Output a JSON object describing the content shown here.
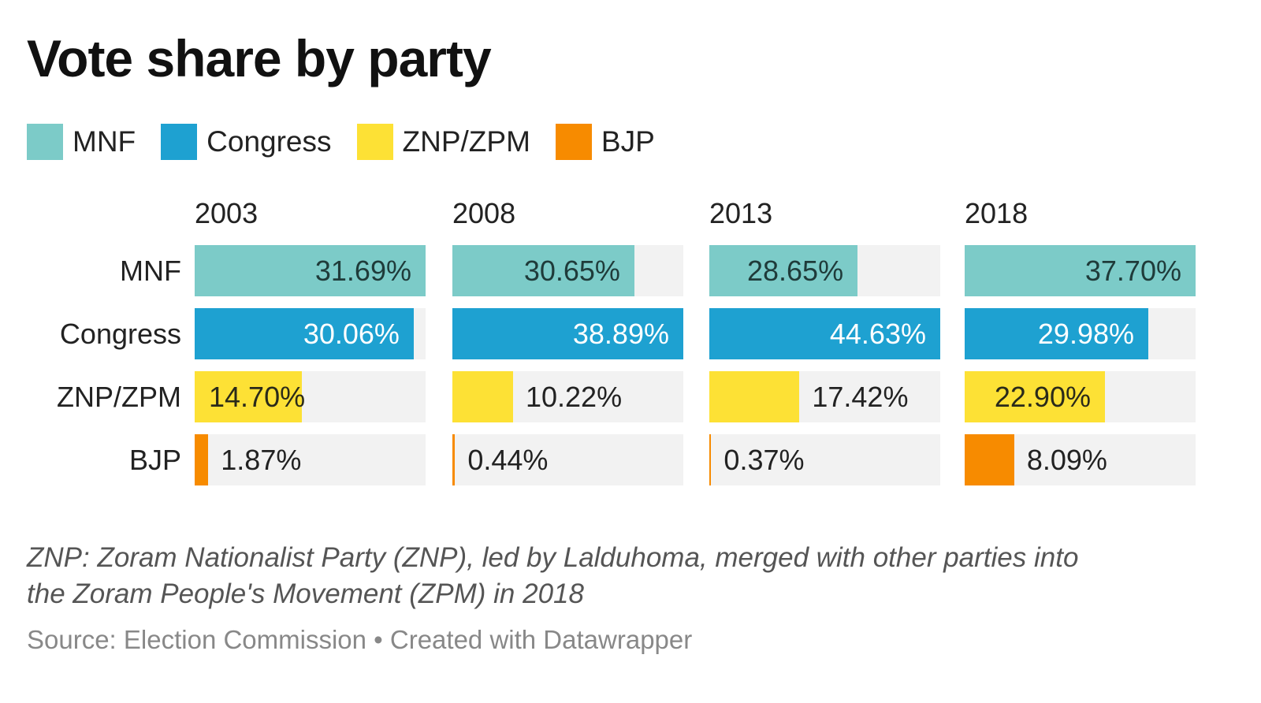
{
  "chart_data": {
    "type": "bar",
    "title": "Vote share by party",
    "legend": [
      {
        "name": "MNF",
        "color": "#7ccbc8"
      },
      {
        "name": "Congress",
        "color": "#1ea1d1"
      },
      {
        "name": "ZNP/ZPM",
        "color": "#fde135"
      },
      {
        "name": "BJP",
        "color": "#f78b00"
      }
    ],
    "legend_position": "top-left",
    "categories": [
      "MNF",
      "Congress",
      "ZNP/ZPM",
      "BJP"
    ],
    "panels": [
      {
        "year": "2003",
        "values": [
          31.69,
          30.06,
          14.7,
          1.87
        ],
        "labels": [
          "31.69%",
          "30.06%",
          "14.70%",
          "1.87%"
        ]
      },
      {
        "year": "2008",
        "values": [
          30.65,
          38.89,
          10.22,
          0.44
        ],
        "labels": [
          "30.65%",
          "38.89%",
          "10.22%",
          "0.44%"
        ]
      },
      {
        "year": "2013",
        "values": [
          28.65,
          44.63,
          17.42,
          0.37
        ],
        "labels": [
          "28.65%",
          "44.63%",
          "17.42%",
          "0.37%"
        ]
      },
      {
        "year": "2018",
        "values": [
          37.7,
          29.98,
          22.9,
          8.09
        ],
        "labels": [
          "37.70%",
          "29.98%",
          "22.90%",
          "8.09%"
        ]
      }
    ],
    "xlabel": "",
    "ylabel": "",
    "grid": false
  },
  "notes": {
    "line1": "ZNP: Zoram Nationalist Party (ZNP), led by Lalduhoma, merged with other parties into",
    "line2": "the Zoram People's Movement (ZPM) in 2018",
    "source": "Source: Election Commission • Created with Datawrapper"
  }
}
